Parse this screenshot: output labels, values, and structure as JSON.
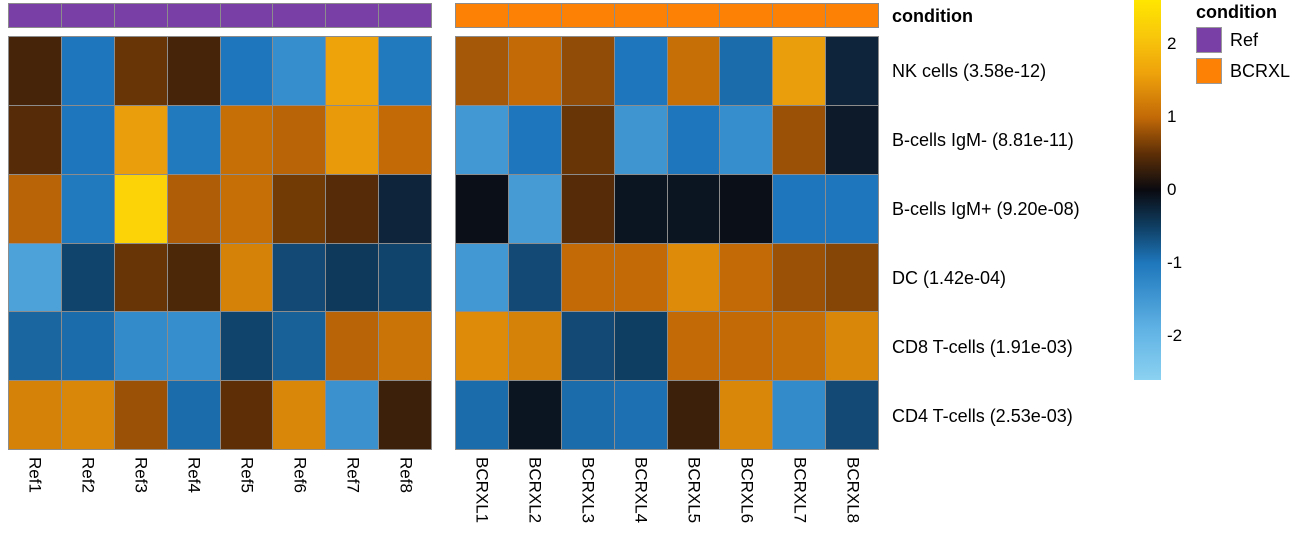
{
  "chart_data": {
    "type": "heatmap",
    "description": "Differential abundance heatmap, two sample groups with condition annotation bar and diverging blue-black-yellow color scale",
    "annotation": {
      "label": "condition",
      "groups": [
        {
          "name": "Ref",
          "color": "#7A3FA6",
          "n_columns": 8
        },
        {
          "name": "BCRXL",
          "color": "#FC8105",
          "n_columns": 8
        }
      ]
    },
    "columns": {
      "ref": [
        "Ref1",
        "Ref2",
        "Ref3",
        "Ref4",
        "Ref5",
        "Ref6",
        "Ref7",
        "Ref8"
      ],
      "bcrxl": [
        "BCRXL1",
        "BCRXL2",
        "BCRXL3",
        "BCRXL4",
        "BCRXL5",
        "BCRXL6",
        "BCRXL7",
        "BCRXL8"
      ]
    },
    "rows": [
      "NK cells (3.58e-12)",
      "B-cells IgM- (8.81e-11)",
      "B-cells IgM+ (9.20e-08)",
      "DC (1.42e-04)",
      "CD8 T-cells (1.91e-03)",
      "CD4 T-cells (2.53e-03)"
    ],
    "values": {
      "ref": [
        [
          0.35,
          -1.0,
          0.55,
          0.35,
          -1.0,
          -1.35,
          1.6,
          -1.05
        ],
        [
          0.45,
          -1.0,
          1.55,
          -1.05,
          1.05,
          0.95,
          1.5,
          1.0
        ],
        [
          0.95,
          -1.05,
          2.3,
          0.9,
          1.05,
          0.6,
          0.45,
          -0.25
        ],
        [
          -1.65,
          -0.55,
          0.55,
          0.4,
          1.25,
          -0.6,
          -0.45,
          -0.55
        ],
        [
          -0.85,
          -0.9,
          -1.3,
          -1.35,
          -0.55,
          -0.8,
          0.95,
          1.1
        ],
        [
          1.25,
          1.3,
          0.8,
          -0.9,
          0.5,
          1.3,
          -1.4,
          0.3
        ]
      ],
      "bcrxl": [
        [
          0.85,
          1.0,
          0.75,
          -1.0,
          1.05,
          -0.9,
          1.55,
          -0.25
        ],
        [
          -1.5,
          -1.0,
          0.55,
          -1.45,
          -1.0,
          -1.35,
          0.8,
          -0.15
        ],
        [
          -0.05,
          -1.55,
          0.45,
          -0.1,
          -0.1,
          -0.05,
          -1.0,
          -1.0
        ],
        [
          -1.5,
          -0.6,
          1.0,
          1.0,
          1.35,
          1.0,
          0.8,
          0.7
        ],
        [
          1.35,
          1.25,
          -0.6,
          -0.5,
          1.0,
          1.0,
          1.05,
          1.3
        ],
        [
          -0.9,
          -0.1,
          -0.9,
          -0.95,
          0.3,
          1.3,
          -1.3,
          -0.6
        ]
      ]
    },
    "colorbar": {
      "min": -2.6,
      "max": 2.6,
      "ticks": [
        2,
        1,
        0,
        -1,
        -2
      ],
      "stops": [
        [
          -2.6,
          "#8BD1F1"
        ],
        [
          -1.9,
          "#5FB2E4"
        ],
        [
          -1.0,
          "#1E77BC"
        ],
        [
          -0.5,
          "#0F3E63"
        ],
        [
          0.0,
          "#0A0A10"
        ],
        [
          0.5,
          "#5E2F06"
        ],
        [
          1.0,
          "#C36A07"
        ],
        [
          1.6,
          "#EFA30B"
        ],
        [
          2.1,
          "#F8C70B"
        ],
        [
          2.6,
          "#FFE600"
        ]
      ]
    },
    "legend": {
      "title": "condition",
      "items": [
        {
          "label": "Ref",
          "color": "#7A3FA6"
        },
        {
          "label": "BCRXL",
          "color": "#FC8105"
        }
      ]
    },
    "grid_line_color": "#8c8c8c"
  }
}
